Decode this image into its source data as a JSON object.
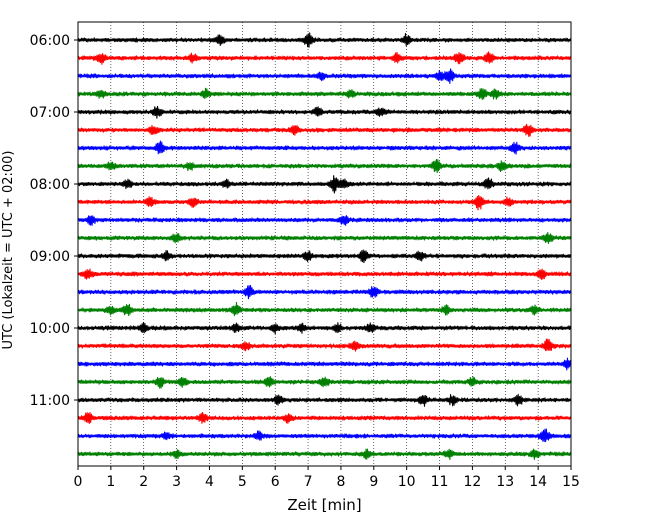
{
  "chart_data": {
    "type": "line",
    "title": "",
    "xlabel": "Zeit  [min]",
    "ylabel": "UTC (Lokalzeit = UTC + 02:00)",
    "xlim": [
      0,
      15
    ],
    "x_ticks": [
      "0",
      "1",
      "2",
      "3",
      "4",
      "5",
      "6",
      "7",
      "8",
      "9",
      "10",
      "11",
      "12",
      "13",
      "14",
      "15"
    ],
    "y_ticks": [
      "06:00",
      "07:00",
      "08:00",
      "09:00",
      "10:00",
      "11:00"
    ],
    "trace_interval_min": 15,
    "start_time": "06:00",
    "grid": "vertical-dotted",
    "colors": [
      "#000000",
      "#ff0000",
      "#0000ff",
      "#008000"
    ],
    "traces": [
      {
        "start": "06:00",
        "color": "#000000",
        "events": [
          [
            4.3,
            0.5
          ],
          [
            7.0,
            0.8
          ],
          [
            10.0,
            0.6
          ]
        ]
      },
      {
        "start": "06:15",
        "color": "#ff0000",
        "events": [
          [
            0.7,
            0.6
          ],
          [
            3.5,
            0.5
          ],
          [
            9.7,
            0.5
          ],
          [
            11.6,
            0.7
          ],
          [
            12.5,
            0.6
          ]
        ]
      },
      {
        "start": "06:30",
        "color": "#0000ff",
        "events": [
          [
            7.4,
            0.4
          ],
          [
            11.0,
            0.5
          ],
          [
            11.3,
            0.9
          ]
        ]
      },
      {
        "start": "06:45",
        "color": "#008000",
        "events": [
          [
            0.7,
            0.4
          ],
          [
            3.9,
            0.5
          ],
          [
            8.3,
            0.4
          ],
          [
            12.3,
            0.6
          ],
          [
            12.7,
            0.5
          ]
        ]
      },
      {
        "start": "07:00",
        "color": "#000000",
        "events": [
          [
            2.4,
            0.7
          ],
          [
            7.3,
            0.5
          ],
          [
            9.2,
            0.5
          ]
        ]
      },
      {
        "start": "07:15",
        "color": "#ff0000",
        "events": [
          [
            2.3,
            0.5
          ],
          [
            6.6,
            0.5
          ],
          [
            13.7,
            0.7
          ]
        ]
      },
      {
        "start": "07:30",
        "color": "#0000ff",
        "events": [
          [
            2.5,
            0.7
          ],
          [
            13.3,
            0.7
          ]
        ]
      },
      {
        "start": "07:45",
        "color": "#008000",
        "events": [
          [
            1.0,
            0.4
          ],
          [
            3.4,
            0.4
          ],
          [
            10.9,
            0.8
          ],
          [
            12.9,
            0.5
          ]
        ]
      },
      {
        "start": "08:00",
        "color": "#000000",
        "events": [
          [
            1.5,
            0.5
          ],
          [
            4.5,
            0.4
          ],
          [
            7.8,
            0.9
          ],
          [
            8.1,
            0.5
          ],
          [
            12.5,
            0.7
          ]
        ]
      },
      {
        "start": "08:15",
        "color": "#ff0000",
        "events": [
          [
            2.2,
            0.6
          ],
          [
            3.5,
            0.6
          ],
          [
            12.2,
            0.9
          ],
          [
            13.1,
            0.5
          ]
        ]
      },
      {
        "start": "08:30",
        "color": "#0000ff",
        "events": [
          [
            0.4,
            0.5
          ],
          [
            8.1,
            0.5
          ]
        ]
      },
      {
        "start": "08:45",
        "color": "#008000",
        "events": [
          [
            3.0,
            0.5
          ],
          [
            14.3,
            0.6
          ]
        ]
      },
      {
        "start": "09:00",
        "color": "#000000",
        "events": [
          [
            2.7,
            0.5
          ],
          [
            7.0,
            0.6
          ],
          [
            8.7,
            0.8
          ],
          [
            10.4,
            0.5
          ]
        ]
      },
      {
        "start": "09:15",
        "color": "#ff0000",
        "events": [
          [
            0.3,
            0.6
          ],
          [
            14.1,
            0.6
          ]
        ]
      },
      {
        "start": "09:30",
        "color": "#0000ff",
        "events": [
          [
            5.2,
            0.7
          ],
          [
            9.0,
            0.7
          ]
        ]
      },
      {
        "start": "09:45",
        "color": "#008000",
        "events": [
          [
            1.0,
            0.5
          ],
          [
            1.5,
            0.7
          ],
          [
            4.8,
            0.7
          ],
          [
            11.2,
            0.5
          ],
          [
            13.9,
            0.5
          ]
        ]
      },
      {
        "start": "10:00",
        "color": "#000000",
        "events": [
          [
            2.0,
            0.5
          ],
          [
            4.8,
            0.5
          ],
          [
            6.0,
            0.5
          ],
          [
            6.8,
            0.5
          ],
          [
            7.9,
            0.5
          ],
          [
            8.9,
            0.5
          ]
        ]
      },
      {
        "start": "10:15",
        "color": "#ff0000",
        "events": [
          [
            5.1,
            0.5
          ],
          [
            8.4,
            0.6
          ],
          [
            14.3,
            0.8
          ]
        ]
      },
      {
        "start": "10:30",
        "color": "#0000ff",
        "events": [
          [
            14.9,
            0.5
          ]
        ]
      },
      {
        "start": "10:45",
        "color": "#008000",
        "events": [
          [
            2.5,
            0.6
          ],
          [
            3.2,
            0.5
          ],
          [
            5.8,
            0.5
          ],
          [
            7.5,
            0.6
          ],
          [
            12.0,
            0.5
          ]
        ]
      },
      {
        "start": "11:00",
        "color": "#000000",
        "events": [
          [
            6.1,
            0.5
          ],
          [
            10.5,
            0.7
          ],
          [
            11.4,
            0.6
          ],
          [
            13.4,
            0.6
          ]
        ]
      },
      {
        "start": "11:15",
        "color": "#ff0000",
        "events": [
          [
            0.3,
            0.6
          ],
          [
            3.8,
            0.6
          ],
          [
            6.4,
            0.5
          ]
        ]
      },
      {
        "start": "11:30",
        "color": "#0000ff",
        "events": [
          [
            2.7,
            0.4
          ],
          [
            5.5,
            0.5
          ],
          [
            14.2,
            0.9
          ]
        ]
      },
      {
        "start": "11:45",
        "color": "#008000",
        "events": [
          [
            3.0,
            0.4
          ],
          [
            8.8,
            0.5
          ],
          [
            11.3,
            0.5
          ],
          [
            13.9,
            0.5
          ]
        ]
      }
    ]
  }
}
